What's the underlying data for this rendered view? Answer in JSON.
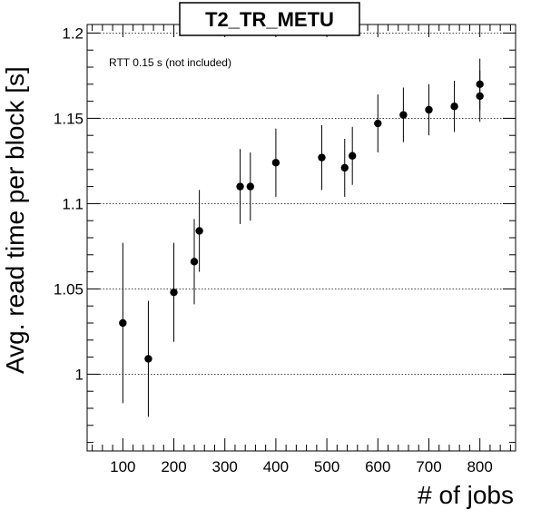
{
  "chart_data": {
    "type": "scatter",
    "title": "T2_TR_METU",
    "xlabel": "# of jobs",
    "ylabel": "Avg. read time per block [s]",
    "annotation": "RTT 0.15 s (not included)",
    "xlim": [
      30,
      870
    ],
    "ylim": [
      0.955,
      1.205
    ],
    "x_ticks": [
      100,
      200,
      300,
      400,
      500,
      600,
      700,
      800
    ],
    "y_ticks": [
      1,
      1.05,
      1.1,
      1.15,
      1.2
    ],
    "y_tick_labels": [
      "1",
      "1.05",
      "1.1",
      "1.15",
      "1.2"
    ],
    "grid": "horizontal dotted",
    "series": [
      {
        "points": [
          {
            "x": 100,
            "y": 1.03,
            "err": 0.047
          },
          {
            "x": 150,
            "y": 1.009,
            "err": 0.034
          },
          {
            "x": 200,
            "y": 1.048,
            "err": 0.029
          },
          {
            "x": 240,
            "y": 1.066,
            "err": 0.025
          },
          {
            "x": 250,
            "y": 1.084,
            "err": 0.024
          },
          {
            "x": 330,
            "y": 1.11,
            "err": 0.022
          },
          {
            "x": 350,
            "y": 1.11,
            "err": 0.02
          },
          {
            "x": 400,
            "y": 1.124,
            "err": 0.02
          },
          {
            "x": 490,
            "y": 1.127,
            "err": 0.019
          },
          {
            "x": 535,
            "y": 1.121,
            "err": 0.017
          },
          {
            "x": 550,
            "y": 1.128,
            "err": 0.017
          },
          {
            "x": 600,
            "y": 1.147,
            "err": 0.017
          },
          {
            "x": 650,
            "y": 1.152,
            "err": 0.016
          },
          {
            "x": 700,
            "y": 1.155,
            "err": 0.015
          },
          {
            "x": 750,
            "y": 1.157,
            "err": 0.015
          },
          {
            "x": 800,
            "y": 1.17,
            "err": 0.015
          },
          {
            "x": 800,
            "y": 1.163,
            "err": 0.015
          }
        ]
      }
    ]
  }
}
